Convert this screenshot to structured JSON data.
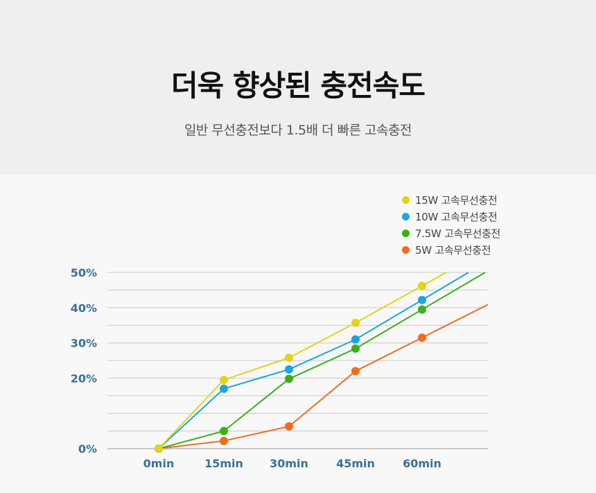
{
  "header": {
    "title": "더욱 향상된 충전속도",
    "subtitle": "일반 무선충전보다 1.5배 더 빠른 고속충전"
  },
  "chart_data": {
    "type": "line",
    "categories": [
      "0min",
      "15min",
      "30min",
      "45min",
      "60min"
    ],
    "y_ticks": [
      "0%",
      "10%",
      "20%",
      "30%",
      "40%",
      "50%"
    ],
    "y_tick_labels_shown": [
      "0%",
      "20%",
      "30%",
      "40%",
      "50%"
    ],
    "ylim": [
      0,
      50
    ],
    "grid": true,
    "legend_position": "top-right",
    "series": [
      {
        "name": "15W 고속무선충전",
        "color": "#e3d319",
        "values": [
          0,
          19.5,
          25.8,
          35.7,
          46.2
        ],
        "end": 50
      },
      {
        "name": "10W 고속무선충전",
        "color": "#19a6e0",
        "values": [
          0,
          17,
          22.5,
          31,
          42.2
        ],
        "end": 50
      },
      {
        "name": "7.5W 고속무선충전",
        "color": "#3cb01a",
        "values": [
          0,
          5,
          19.8,
          28.4,
          39.5
        ],
        "end": 50
      },
      {
        "name": "5W 고속무선충전",
        "color": "#f26b1f",
        "values": [
          0,
          2.2,
          6.3,
          22,
          31.5
        ],
        "end": 42.3
      }
    ]
  }
}
